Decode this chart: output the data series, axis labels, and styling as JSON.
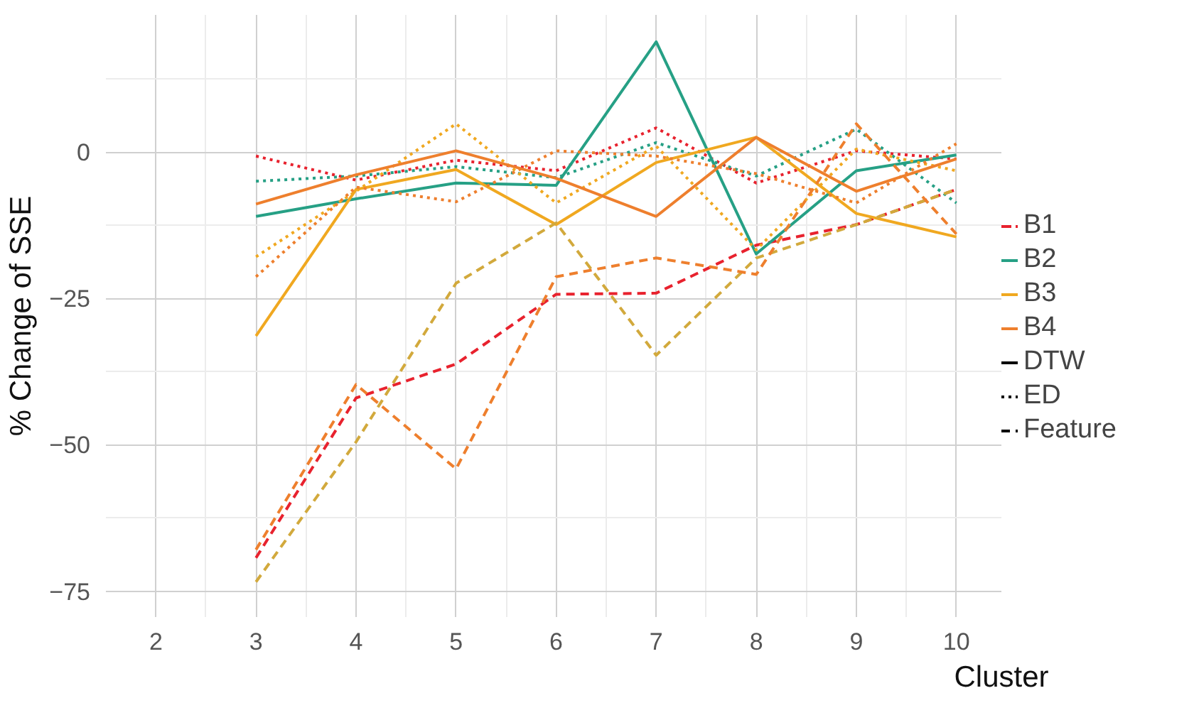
{
  "chart_data": {
    "type": "line",
    "xlabel": "Cluster",
    "ylabel": "% Change of SSE",
    "x": [
      3,
      4,
      5,
      6,
      7,
      8,
      9,
      10
    ],
    "xlim": [
      1.5,
      10.45
    ],
    "ylim": [
      -79.4,
      23.4
    ],
    "xticks": [
      2,
      3,
      4,
      5,
      6,
      7,
      8,
      9,
      10
    ],
    "yticks": [
      -75,
      -50,
      -25,
      0
    ],
    "grid": true,
    "legend": "right",
    "annotations": [
      "DTW",
      "ED",
      "Feature"
    ],
    "series": [
      {
        "name": "B1",
        "color": "#e8222e",
        "line_style": "dotted",
        "values": [
          -0.7,
          -4.8,
          -1.4,
          -3.2,
          4.1,
          -5.3,
          0.2,
          -1.2
        ]
      },
      {
        "color": "#e8222e",
        "line_style": "dashed",
        "values": [
          -69.3,
          -42,
          -36.2,
          -24.3,
          -24.1,
          -15.9,
          -12.4,
          -6.4
        ]
      },
      {
        "name": "B2",
        "color": "#26a085",
        "line_style": "solid",
        "values": [
          -11,
          -8,
          -5.3,
          -5.7,
          18.8,
          -17.4,
          -3.2,
          -0.5
        ]
      },
      {
        "color": "#26a085",
        "line_style": "dotted",
        "values": [
          -5,
          -4.1,
          -2.5,
          -4.4,
          1.6,
          -4.1,
          3.9,
          -8.7
        ]
      },
      {
        "name": "B3",
        "color": "#f0a820",
        "line_style": "solid",
        "values": [
          -31.4,
          -6.4,
          -3,
          -12.4,
          -1.8,
          2.5,
          -10.5,
          -14.5
        ]
      },
      {
        "color": "#f0a820",
        "line_style": "dotted",
        "values": [
          -17.9,
          -6.7,
          4.8,
          -8.7,
          1,
          -16.7,
          0.5,
          -3.2
        ]
      },
      {
        "color": "#d2a93c",
        "line_style": "dashed",
        "values": [
          -73.4,
          -49.5,
          -22.4,
          -12.1,
          -34.7,
          -18.1,
          -12.4,
          -6.4
        ]
      },
      {
        "name": "B4",
        "color": "#ee7f2d",
        "line_style": "solid",
        "values": [
          -8.9,
          -3.9,
          0.2,
          -4.5,
          -11,
          2.5,
          -6.7,
          -1.2
        ]
      },
      {
        "color": "#ee7f2d",
        "line_style": "dotted",
        "values": [
          -21.3,
          -6,
          -8.5,
          0.2,
          -0.7,
          -3.7,
          -8.7,
          1.4
        ]
      },
      {
        "color": "#ee7f2d",
        "line_style": "dashed",
        "values": [
          -67.9,
          -39.7,
          -54.1,
          -21.3,
          -18.1,
          -20.9,
          4.8,
          -14
        ]
      }
    ]
  }
}
